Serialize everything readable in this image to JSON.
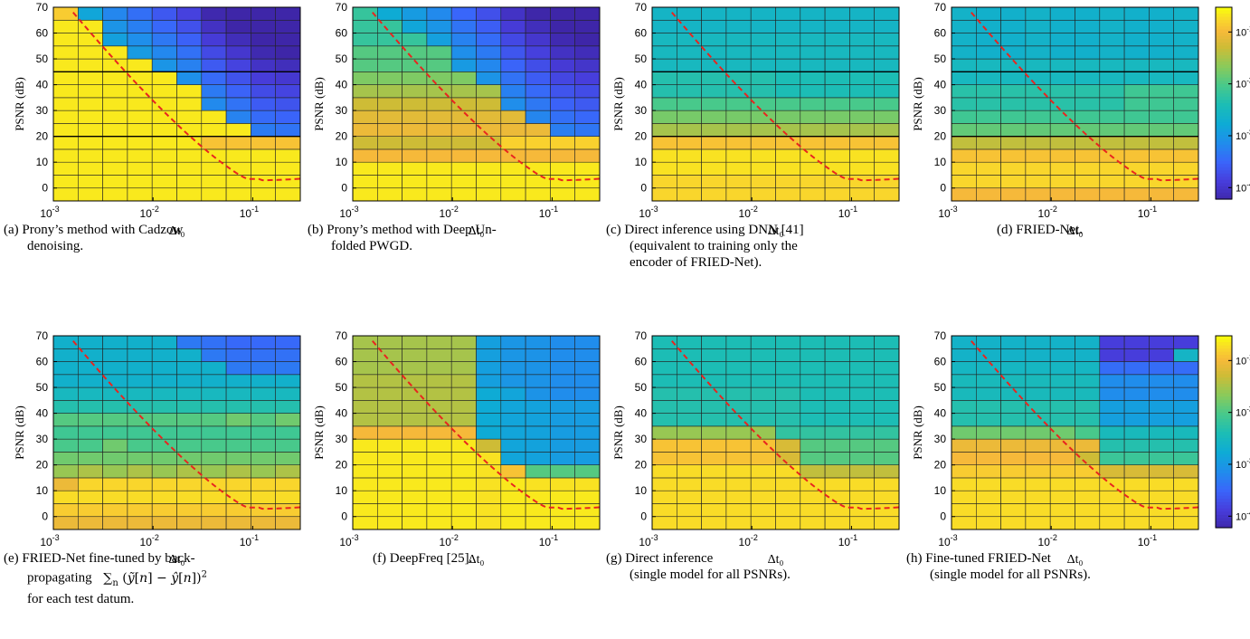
{
  "chart_data": [
    {
      "type": "heatmap",
      "id": "a",
      "pattern": "cadzow",
      "xlabel": "Δt₀",
      "ylabel": "PSNR (dB)",
      "x_scale": "log",
      "xlim": [
        0.001,
        0.3
      ],
      "ylim": [
        -5,
        70
      ],
      "x_ticks": [
        "10-3",
        "10-2",
        "10-1"
      ],
      "y_ticks": [
        0,
        10,
        20,
        30,
        40,
        50,
        60,
        70
      ],
      "hlines": [
        20,
        45
      ],
      "caption_label": "(a)",
      "caption": "Prony’s method with Cadzow denoising."
    },
    {
      "type": "heatmap",
      "id": "b",
      "pattern": "unfolded",
      "xlabel": "Δt₀",
      "ylabel": "PSNR (dB)",
      "x_scale": "log",
      "xlim": [
        0.001,
        0.3
      ],
      "ylim": [
        -5,
        70
      ],
      "x_ticks": [
        "10-3",
        "10-2",
        "10-1"
      ],
      "y_ticks": [
        0,
        10,
        20,
        30,
        40,
        50,
        60,
        70
      ],
      "hlines": [],
      "caption_label": "(b)",
      "caption": "Prony’s method with Deep Un- folded PWGD."
    },
    {
      "type": "heatmap",
      "id": "c",
      "pattern": "direct",
      "xlabel": "Δt₀",
      "ylabel": "PSNR (dB)",
      "x_scale": "log",
      "xlim": [
        0.001,
        0.3
      ],
      "ylim": [
        -5,
        70
      ],
      "x_ticks": [
        "10-3",
        "10-2",
        "10-1"
      ],
      "y_ticks": [
        0,
        10,
        20,
        30,
        40,
        50,
        60,
        70
      ],
      "hlines": [
        20,
        45
      ],
      "caption_label": "(c)",
      "caption": "Direct inference using DNN [41] (equivalent to training only the encoder of FRIED-Net)."
    },
    {
      "type": "heatmap",
      "id": "d",
      "pattern": "fried",
      "xlabel": "Δt₀",
      "ylabel": "PSNR (dB)",
      "x_scale": "log",
      "xlim": [
        0.001,
        0.3
      ],
      "ylim": [
        -5,
        70
      ],
      "x_ticks": [
        "10-3",
        "10-2",
        "10-1"
      ],
      "y_ticks": [
        0,
        10,
        20,
        30,
        40,
        50,
        60,
        70
      ],
      "hlines": [
        20,
        45
      ],
      "caption_label": "(d)",
      "caption": "FRIED-Net."
    },
    {
      "type": "heatmap",
      "id": "e",
      "pattern": "finetune",
      "xlabel": "Δt₀",
      "ylabel": "PSNR (dB)",
      "x_scale": "log",
      "xlim": [
        0.001,
        0.3
      ],
      "ylim": [
        -5,
        70
      ],
      "x_ticks": [
        "10-3",
        "10-2",
        "10-1"
      ],
      "y_ticks": [
        0,
        10,
        20,
        30,
        40,
        50,
        60,
        70
      ],
      "hlines": [],
      "caption_label": "(e)",
      "caption": "FRIED-Net fine-tuned by back- propagating ∑n (ỹ[n] − ŷ[n])² for each test datum."
    },
    {
      "type": "heatmap",
      "id": "f",
      "pattern": "deepfreq",
      "xlabel": "Δt₀",
      "ylabel": "PSNR (dB)",
      "x_scale": "log",
      "xlim": [
        0.001,
        0.3
      ],
      "ylim": [
        -5,
        70
      ],
      "x_ticks": [
        "10-3",
        "10-2",
        "10-1"
      ],
      "y_ticks": [
        0,
        10,
        20,
        30,
        40,
        50,
        60,
        70
      ],
      "hlines": [],
      "caption_label": "(f)",
      "caption": "DeepFreq [25]."
    },
    {
      "type": "heatmap",
      "id": "g",
      "pattern": "single_direct",
      "xlabel": "Δt₀",
      "ylabel": "PSNR (dB)",
      "x_scale": "log",
      "xlim": [
        0.001,
        0.3
      ],
      "ylim": [
        -5,
        70
      ],
      "x_ticks": [
        "10-3",
        "10-2",
        "10-1"
      ],
      "y_ticks": [
        0,
        10,
        20,
        30,
        40,
        50,
        60,
        70
      ],
      "hlines": [],
      "caption_label": "(g)",
      "caption": "Direct inference (single model for all PSNRs)."
    },
    {
      "type": "heatmap",
      "id": "h",
      "pattern": "single_fine",
      "xlabel": "Δt₀",
      "ylabel": "PSNR (dB)",
      "x_scale": "log",
      "xlim": [
        0.001,
        0.3
      ],
      "ylim": [
        -5,
        70
      ],
      "x_ticks": [
        "10-3",
        "10-2",
        "10-1"
      ],
      "y_ticks": [
        0,
        10,
        20,
        30,
        40,
        50,
        60,
        70
      ],
      "hlines": [],
      "caption_label": "(h)",
      "caption": "Fine-tuned FRIED-Net (single model for all PSNRs)."
    }
  ],
  "colorbar": {
    "scale": "log",
    "range": [
      6e-05,
      0.3
    ],
    "ticks": [
      "10-1",
      "10-2",
      "10-3",
      "10-4"
    ],
    "colormap": "parula"
  },
  "reference_curve": {
    "style": "dashed",
    "color": "#e8251f"
  },
  "captions": {
    "a1": "(a) Prony’s method with Cadzow",
    "a2": "denoising.",
    "b1": "(b) Prony’s method with Deep Un-",
    "b2": "folded PWGD.",
    "c1": "(c) Direct inference using DNN [41]",
    "c2": "(equivalent to training only the",
    "c3": "encoder of FRIED-Net).",
    "d1": "(d) FRIED-Net.",
    "e1": "(e) FRIED-Net fine-tuned by back-",
    "e2": "propagating",
    "e3": "for each test datum.",
    "f1": "(f) DeepFreq [25].",
    "g1": "(g) Direct inference",
    "g2": "(single model for all PSNRs).",
    "h1": "(h) Fine-tuned FRIED-Net",
    "h2": "(single model for all PSNRs)."
  }
}
